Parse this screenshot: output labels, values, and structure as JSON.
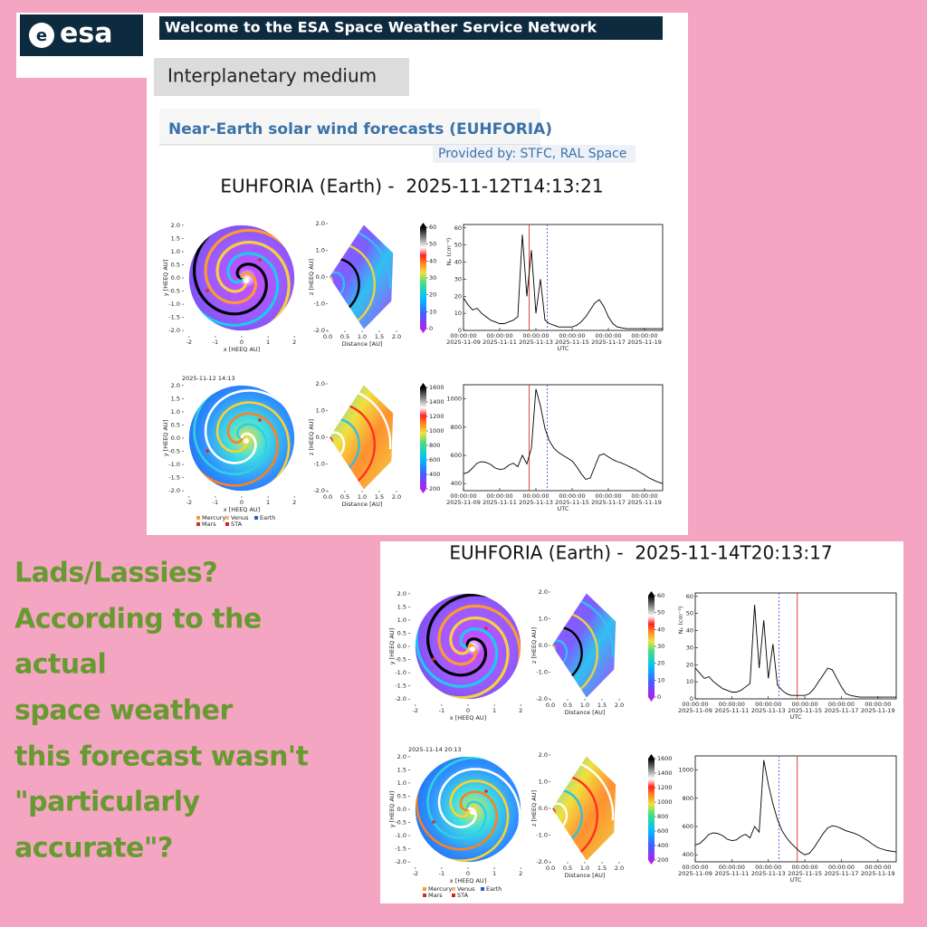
{
  "header": {
    "logo": "esa",
    "title": "Welcome to the ESA Space Weather Service Network"
  },
  "section": "Interplanetary medium",
  "subsection": "Near-Earth solar wind forecasts (EUHFORIA)",
  "provider": "Provided by: STFC, RAL Space",
  "figure_axes": {
    "map": {
      "x_label": "x [HEEQ AU]",
      "y_label": "y [HEEQ AU]",
      "lim": [
        -2.2,
        2.2
      ],
      "xticks": [
        -2,
        -1,
        0,
        1,
        2
      ],
      "yticks": [
        {
          "value": -2,
          "label": "-2.0"
        },
        {
          "value": -1.5,
          "label": "-1.5"
        },
        {
          "value": -1,
          "label": "-1.0"
        },
        {
          "value": -0.5,
          "label": "-0.5"
        },
        {
          "value": 0,
          "label": "0.0"
        },
        {
          "value": 0.5,
          "label": "0.5"
        },
        {
          "value": 1,
          "label": "1.0"
        },
        {
          "value": 1.5,
          "label": "1.5"
        },
        {
          "value": 2,
          "label": "2.0"
        }
      ]
    },
    "wedge": {
      "x_label": "Distance [AU]",
      "y_label": "z [HEEQ AU]",
      "xlim": [
        0,
        2
      ],
      "ylim": [
        -2,
        2
      ],
      "xticks": [
        {
          "value": 0,
          "label": "0.0"
        },
        {
          "value": 0.5,
          "label": "0.5"
        },
        {
          "value": 1,
          "label": "1.0"
        },
        {
          "value": 1.5,
          "label": "1.5"
        },
        {
          "value": 2,
          "label": "2.0"
        }
      ],
      "yticks": [
        {
          "value": -2,
          "label": "-2.0"
        },
        {
          "value": -1,
          "label": "-1.0"
        },
        {
          "value": 0,
          "label": "0.0"
        },
        {
          "value": 1,
          "label": "1.0"
        },
        {
          "value": 2,
          "label": "2.0"
        }
      ]
    },
    "colorbars": [
      {
        "lim": [
          0,
          60
        ],
        "ticks": [
          0,
          10,
          20,
          30,
          40,
          50,
          60
        ]
      },
      {
        "lim": [
          200,
          1600
        ],
        "ticks": [
          200,
          400,
          600,
          800,
          1000,
          1200,
          1400,
          1600
        ]
      }
    ],
    "legend": [
      {
        "name": "Mercury",
        "color": "#f0a030"
      },
      {
        "name": "Venus",
        "color": "#e8c080"
      },
      {
        "name": "Earth",
        "color": "#2060d0"
      },
      {
        "name": "Mars",
        "color": "#d03020"
      },
      {
        "name": "STA",
        "color": "#e02020"
      }
    ],
    "density": {
      "y_label": "Nₚ (cm⁻³)",
      "ylim": [
        0,
        62
      ],
      "yticks": [
        0,
        10,
        20,
        30,
        40,
        50,
        60
      ]
    },
    "speed": {
      "ylim": [
        350,
        1100
      ],
      "yticks": [
        400,
        600,
        800,
        1000
      ]
    }
  },
  "time_axis": {
    "x_label": "UTC",
    "time_of_day": "00:00:00",
    "xlim": [
      "2025-11-09T00",
      "2025-11-20T00"
    ],
    "xticks": [
      "2025-11-09",
      "2025-11-11",
      "2025-11-13",
      "2025-11-15",
      "2025-11-17",
      "2025-11-19"
    ],
    "x": [
      "2025-11-09T00",
      "2025-11-09T06",
      "2025-11-09T12",
      "2025-11-09T18",
      "2025-11-10T00",
      "2025-11-10T06",
      "2025-11-10T12",
      "2025-11-10T18",
      "2025-11-11T00",
      "2025-11-11T06",
      "2025-11-11T12",
      "2025-11-11T18",
      "2025-11-12T00",
      "2025-11-12T06",
      "2025-11-12T12",
      "2025-11-12T18",
      "2025-11-13T00",
      "2025-11-13T06",
      "2025-11-13T12",
      "2025-11-13T18",
      "2025-11-14T00",
      "2025-11-14T06",
      "2025-11-14T12",
      "2025-11-14T18",
      "2025-11-15T00",
      "2025-11-15T06",
      "2025-11-15T12",
      "2025-11-15T18",
      "2025-11-16T00",
      "2025-11-16T06",
      "2025-11-16T12",
      "2025-11-16T18",
      "2025-11-17T00",
      "2025-11-17T06",
      "2025-11-17T12",
      "2025-11-17T18",
      "2025-11-18T00",
      "2025-11-18T06",
      "2025-11-18T12",
      "2025-11-18T18",
      "2025-11-19T00",
      "2025-11-19T06",
      "2025-11-19T12",
      "2025-11-19T18",
      "2025-11-20T00"
    ]
  },
  "snapshots": [
    {
      "title": "EUHFORIA (Earth) -  2025-11-12T14:13:21",
      "map_time": "2025-11-12 14:13",
      "markers": [
        {
          "x": "2025-11-12T15",
          "color": "#e03030",
          "dashed": false
        },
        {
          "x": "2025-11-13T15",
          "color": "#4060e0",
          "dashed": true
        }
      ],
      "density": [
        19,
        15,
        12,
        13,
        10,
        8,
        6,
        5,
        4,
        4,
        5,
        6,
        8,
        56,
        20,
        47,
        10,
        30,
        6,
        4,
        3,
        2,
        2,
        2,
        2,
        3,
        5,
        8,
        12,
        16,
        18,
        14,
        8,
        4,
        2,
        1.5,
        1,
        1,
        1,
        1,
        1,
        1,
        1,
        1,
        1
      ],
      "speed": [
        470,
        480,
        510,
        545,
        555,
        550,
        535,
        510,
        500,
        505,
        530,
        545,
        520,
        600,
        540,
        650,
        1070,
        950,
        790,
        700,
        650,
        620,
        600,
        580,
        560,
        520,
        470,
        430,
        440,
        520,
        600,
        610,
        590,
        570,
        555,
        545,
        530,
        515,
        500,
        480,
        460,
        440,
        425,
        410,
        400
      ]
    },
    {
      "title": "EUHFORIA (Earth) -  2025-11-14T20:13:17",
      "map_time": "2025-11-14 20:13",
      "markers": [
        {
          "x": "2025-11-13T14",
          "color": "#4060e0",
          "dashed": true
        },
        {
          "x": "2025-11-14T14",
          "color": "#e03030",
          "dashed": false
        }
      ],
      "density": [
        18,
        15,
        12,
        13,
        10,
        8,
        6,
        5,
        4,
        4,
        5,
        7,
        9,
        55,
        18,
        46,
        12,
        32,
        8,
        5,
        3,
        2,
        2,
        2,
        2,
        3,
        6,
        10,
        14,
        18,
        17,
        12,
        7,
        3,
        2,
        1.5,
        1,
        1,
        1,
        1,
        1,
        1,
        1,
        1,
        1
      ],
      "speed": [
        470,
        480,
        510,
        545,
        555,
        550,
        535,
        510,
        500,
        505,
        530,
        545,
        520,
        600,
        560,
        1070,
        900,
        760,
        650,
        570,
        520,
        480,
        450,
        420,
        400,
        410,
        450,
        500,
        550,
        590,
        605,
        600,
        585,
        570,
        560,
        550,
        535,
        515,
        495,
        470,
        450,
        440,
        430,
        425,
        420
      ]
    }
  ],
  "caption": [
    "Lads/Lassies?",
    "According to the",
    "actual",
    "space weather",
    "this forecast wasn't",
    "\"particularly",
    "accurate\"?"
  ]
}
